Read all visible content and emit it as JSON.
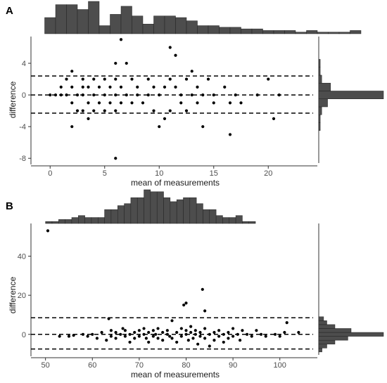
{
  "colors": {
    "bar": "#4d4d4d",
    "bar_stroke": "#222222",
    "point": "#000000",
    "axis": "#333333"
  },
  "chart_data": [
    {
      "panel": "A",
      "type": "scatter",
      "xlabel": "mean of measurements",
      "ylabel": "difference",
      "xlim": [
        -1.5,
        24.5
      ],
      "ylim": [
        -8.6,
        7.2
      ],
      "xticks": [
        0,
        5,
        10,
        15,
        20
      ],
      "yticks": [
        -8,
        -4,
        0,
        4
      ],
      "grid": false,
      "reference_lines": [
        2.4,
        0,
        -2.3
      ],
      "points": [
        [
          0,
          0
        ],
        [
          0.5,
          0
        ],
        [
          1,
          1
        ],
        [
          1,
          0
        ],
        [
          1.5,
          2
        ],
        [
          1.5,
          0
        ],
        [
          2,
          3
        ],
        [
          2,
          1
        ],
        [
          2,
          -1
        ],
        [
          2,
          -4
        ],
        [
          2.5,
          0
        ],
        [
          2.5,
          -2
        ],
        [
          3,
          2
        ],
        [
          3,
          1
        ],
        [
          3,
          0
        ],
        [
          3,
          -2
        ],
        [
          3.5,
          1
        ],
        [
          3.5,
          -1
        ],
        [
          3.5,
          -3
        ],
        [
          4,
          2
        ],
        [
          4,
          0
        ],
        [
          4,
          -2
        ],
        [
          4.5,
          1
        ],
        [
          4.5,
          -1
        ],
        [
          5,
          2
        ],
        [
          5,
          0
        ],
        [
          5,
          -2
        ],
        [
          5.5,
          1
        ],
        [
          5.5,
          -1
        ],
        [
          6,
          4
        ],
        [
          6,
          2
        ],
        [
          6,
          0
        ],
        [
          6,
          -2
        ],
        [
          6,
          -8
        ],
        [
          6.5,
          7
        ],
        [
          6.5,
          1
        ],
        [
          6.5,
          -1
        ],
        [
          7,
          4
        ],
        [
          7,
          0
        ],
        [
          7.5,
          2
        ],
        [
          7.5,
          -1
        ],
        [
          8,
          1
        ],
        [
          8,
          0
        ],
        [
          8.5,
          -1
        ],
        [
          9,
          2
        ],
        [
          9,
          0
        ],
        [
          9.5,
          1
        ],
        [
          9.5,
          -2
        ],
        [
          10,
          0
        ],
        [
          10,
          -4
        ],
        [
          10.5,
          -3
        ],
        [
          10.5,
          1
        ],
        [
          11,
          6
        ],
        [
          11,
          2
        ],
        [
          11,
          -2
        ],
        [
          11.5,
          5
        ],
        [
          11.5,
          1
        ],
        [
          12,
          0
        ],
        [
          12,
          -1
        ],
        [
          12.5,
          2
        ],
        [
          12.5,
          -2
        ],
        [
          13,
          0
        ],
        [
          13,
          3
        ],
        [
          13.5,
          1
        ],
        [
          13.5,
          -1
        ],
        [
          14,
          0
        ],
        [
          14,
          -4
        ],
        [
          14.5,
          2
        ],
        [
          15,
          0
        ],
        [
          15,
          -1
        ],
        [
          16,
          1
        ],
        [
          16.5,
          -1
        ],
        [
          16.5,
          -5
        ],
        [
          17,
          0
        ],
        [
          17.5,
          -1
        ],
        [
          19,
          0
        ],
        [
          20,
          2
        ],
        [
          20.5,
          -3
        ],
        [
          21,
          0
        ]
      ],
      "top_histogram": {
        "bin_start": -0.5,
        "bin_width": 1,
        "counts": [
          10,
          18,
          18,
          15,
          20,
          5,
          12,
          17,
          11,
          6,
          11,
          11,
          10,
          8,
          5,
          5,
          4,
          4,
          3,
          3,
          2,
          2,
          2,
          1,
          2,
          1,
          1,
          1,
          2
        ],
        "note_bins_wide": false
      },
      "right_histogram": {
        "bins": [
          -4,
          -3,
          -2,
          -1,
          0,
          1,
          2,
          3,
          4
        ],
        "counts": [
          1,
          1,
          2,
          6,
          44,
          8,
          2,
          1,
          1
        ]
      }
    },
    {
      "panel": "B",
      "type": "scatter",
      "xlabel": "mean of measurements",
      "ylabel": "difference",
      "xlim": [
        47.5,
        108
      ],
      "ylim": [
        -10.5,
        56
      ],
      "xticks": [
        50,
        60,
        70,
        80,
        90,
        100
      ],
      "yticks": [
        0,
        20,
        40
      ],
      "grid": false,
      "reference_lines": [
        8.5,
        0,
        -7.5
      ],
      "points": [
        [
          50.5,
          53
        ],
        [
          53,
          -1
        ],
        [
          55,
          -1
        ],
        [
          56,
          -0.5
        ],
        [
          58,
          0
        ],
        [
          59,
          -1
        ],
        [
          60,
          0
        ],
        [
          61,
          -2
        ],
        [
          62,
          1
        ],
        [
          63,
          -3
        ],
        [
          63.5,
          8
        ],
        [
          64,
          2
        ],
        [
          64,
          -1
        ],
        [
          65,
          1
        ],
        [
          65,
          -2
        ],
        [
          66,
          0
        ],
        [
          66.5,
          3
        ],
        [
          67,
          -1
        ],
        [
          67,
          2
        ],
        [
          68,
          0
        ],
        [
          68,
          -4
        ],
        [
          69,
          1
        ],
        [
          69,
          -2
        ],
        [
          70,
          2
        ],
        [
          70,
          -1
        ],
        [
          71,
          0
        ],
        [
          71,
          3
        ],
        [
          71.5,
          -2
        ],
        [
          72,
          1
        ],
        [
          72,
          -4
        ],
        [
          73,
          2
        ],
        [
          73,
          -1
        ],
        [
          73.5,
          0
        ],
        [
          74,
          3
        ],
        [
          74,
          -2
        ],
        [
          75,
          1
        ],
        [
          75,
          -3
        ],
        [
          76,
          0
        ],
        [
          76,
          2
        ],
        [
          76.5,
          -1
        ],
        [
          77,
          7
        ],
        [
          77,
          -2
        ],
        [
          78,
          1
        ],
        [
          78,
          -4
        ],
        [
          79,
          3
        ],
        [
          79,
          -1
        ],
        [
          79.5,
          15
        ],
        [
          80,
          16
        ],
        [
          80,
          0
        ],
        [
          80,
          2
        ],
        [
          80.5,
          -3
        ],
        [
          81,
          1
        ],
        [
          81,
          4
        ],
        [
          81.5,
          -2
        ],
        [
          82,
          0
        ],
        [
          82,
          2
        ],
        [
          82.5,
          -5
        ],
        [
          83,
          1
        ],
        [
          83,
          -1
        ],
        [
          83.5,
          23
        ],
        [
          84,
          12
        ],
        [
          84,
          3
        ],
        [
          84,
          -2
        ],
        [
          85,
          0
        ],
        [
          85,
          -6
        ],
        [
          86,
          1
        ],
        [
          86,
          -3
        ],
        [
          87,
          2
        ],
        [
          87,
          -1
        ],
        [
          88,
          0
        ],
        [
          88,
          -4
        ],
        [
          89,
          1
        ],
        [
          89,
          -2
        ],
        [
          90,
          3
        ],
        [
          90,
          -1
        ],
        [
          91,
          0
        ],
        [
          91.5,
          -3
        ],
        [
          92,
          2
        ],
        [
          93,
          0
        ],
        [
          94,
          -1
        ],
        [
          95,
          2
        ],
        [
          96,
          0
        ],
        [
          97,
          -1
        ],
        [
          99,
          0
        ],
        [
          100,
          -1
        ],
        [
          101,
          1
        ],
        [
          101.5,
          6
        ],
        [
          104,
          1
        ]
      ],
      "top_histogram": {
        "bin_start": 50,
        "bin_width": 1.4,
        "counts": [
          1,
          1,
          2,
          2,
          3,
          4,
          3,
          3,
          3,
          7,
          7,
          9,
          10,
          13,
          13,
          17,
          16,
          16,
          13,
          11,
          12,
          13,
          13,
          10,
          7,
          7,
          4,
          3,
          3,
          4,
          1,
          1
        ],
        "note_bins_wide": false
      },
      "right_histogram": {
        "bins": [
          -8,
          -6,
          -4,
          -2,
          0,
          2,
          4,
          6,
          8
        ],
        "counts": [
          2,
          5,
          10,
          18,
          40,
          20,
          10,
          5,
          3
        ]
      }
    }
  ],
  "panels": {
    "a_label": "A",
    "b_label": "B",
    "a_xlabel": "mean of measurements",
    "a_ylabel": "difference",
    "b_xlabel": "mean of measurements",
    "b_ylabel": "difference"
  }
}
